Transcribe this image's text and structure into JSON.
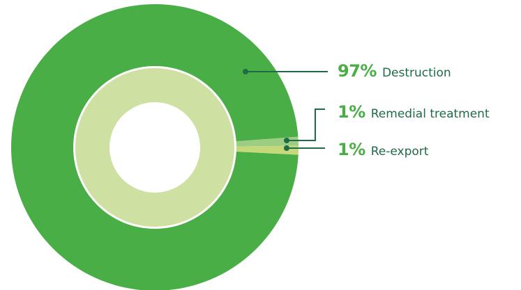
{
  "chart_data": {
    "type": "pie",
    "style": "donut",
    "slices": [
      {
        "label": "Destruction",
        "value": 97,
        "value_label": "97%",
        "color": "#4aae47"
      },
      {
        "label": "Remedial treatment",
        "value": 1,
        "value_label": "1%",
        "color": "#9ccd83"
      },
      {
        "label": "Re-export",
        "value": 1,
        "value_label": "1%",
        "color": "#c5d97a"
      }
    ],
    "inner_ring_color": "#cfe0a3",
    "leader_color": "#1f6b45"
  }
}
